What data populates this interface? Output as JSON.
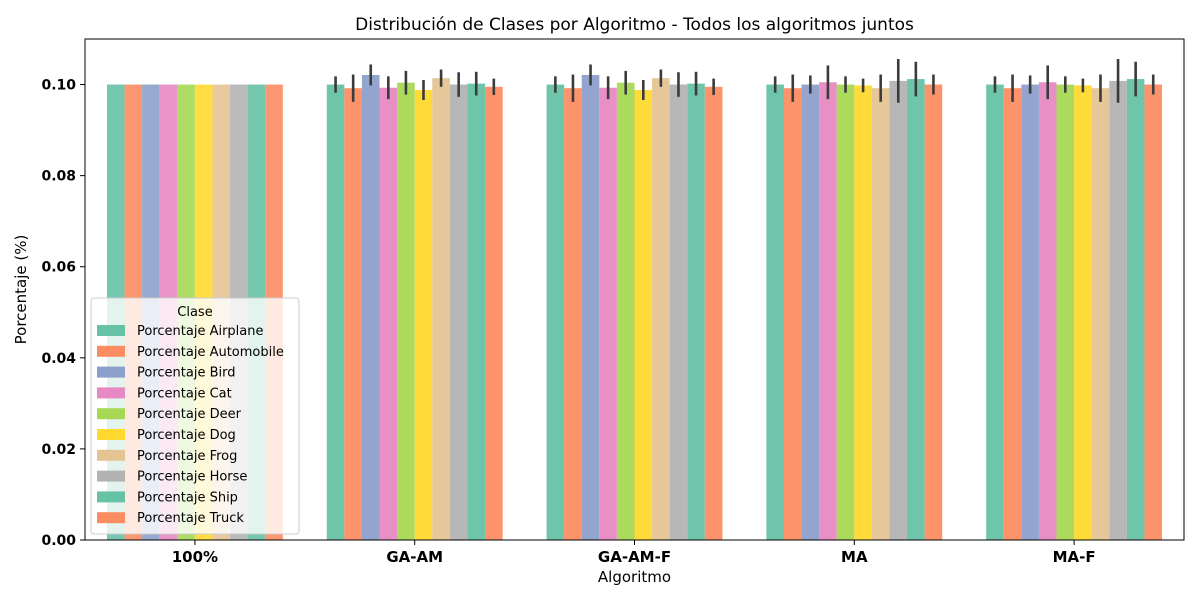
{
  "chart_data": {
    "type": "bar",
    "title": "Distribución de Clases por Algoritmo - Todos los algoritmos juntos",
    "xlabel": "Algoritmo",
    "ylabel": "Porcentaje (%)",
    "ylim": [
      0,
      0.11
    ],
    "yticks": [
      0.0,
      0.02,
      0.04,
      0.06,
      0.08,
      0.1
    ],
    "ytick_labels": [
      "0.00",
      "0.02",
      "0.04",
      "0.06",
      "0.08",
      "0.10"
    ],
    "categories": [
      "100%",
      "GA-AM",
      "GA-AM-F",
      "MA",
      "MA-F"
    ],
    "legend": {
      "title": "Clase",
      "placement": "lower-left"
    },
    "grid": false,
    "series": [
      {
        "name": "Porcentaje Airplane",
        "color": "#66c2a5",
        "values": [
          0.1,
          0.1,
          0.1,
          0.1,
          0.1
        ],
        "err": [
          0,
          0.0018,
          0.0018,
          0.0018,
          0.0018
        ]
      },
      {
        "name": "Porcentaje Automobile",
        "color": "#fc8d62",
        "values": [
          0.1,
          0.0992,
          0.0992,
          0.0992,
          0.0992
        ],
        "err": [
          0,
          0.003,
          0.003,
          0.003,
          0.003
        ]
      },
      {
        "name": "Porcentaje Bird",
        "color": "#8da0cb",
        "values": [
          0.1,
          0.1021,
          0.1021,
          0.1,
          0.1
        ],
        "err": [
          0,
          0.0023,
          0.0023,
          0.002,
          0.002
        ]
      },
      {
        "name": "Porcentaje Cat",
        "color": "#e78ac3",
        "values": [
          0.1,
          0.0993,
          0.0993,
          0.1005,
          0.1005
        ],
        "err": [
          0,
          0.0025,
          0.0025,
          0.0037,
          0.0037
        ]
      },
      {
        "name": "Porcentaje Deer",
        "color": "#a6d854",
        "values": [
          0.1,
          0.1004,
          0.1004,
          0.1,
          0.1
        ],
        "err": [
          0,
          0.0026,
          0.0026,
          0.0018,
          0.0018
        ]
      },
      {
        "name": "Porcentaje Dog",
        "color": "#ffd92f",
        "values": [
          0.1,
          0.0988,
          0.0988,
          0.0998,
          0.0998
        ],
        "err": [
          0,
          0.0022,
          0.0022,
          0.0015,
          0.0015
        ]
      },
      {
        "name": "Porcentaje Frog",
        "color": "#e5c494",
        "values": [
          0.1,
          0.1014,
          0.1014,
          0.0992,
          0.0992
        ],
        "err": [
          0,
          0.0019,
          0.0019,
          0.003,
          0.003
        ]
      },
      {
        "name": "Porcentaje Horse",
        "color": "#b3b3b3",
        "values": [
          0.1,
          0.1,
          0.1,
          0.1008,
          0.1008
        ],
        "err": [
          0,
          0.0027,
          0.0027,
          0.0048,
          0.0048
        ]
      },
      {
        "name": "Porcentaje Ship",
        "color": "#66c2a5",
        "values": [
          0.1,
          0.1002,
          0.1002,
          0.1012,
          0.1012
        ],
        "err": [
          0,
          0.0026,
          0.0026,
          0.0038,
          0.0038
        ]
      },
      {
        "name": "Porcentaje Truck",
        "color": "#fc8d62",
        "values": [
          0.1,
          0.0995,
          0.0995,
          0.1,
          0.1
        ],
        "err": [
          0,
          0.0018,
          0.0018,
          0.0022,
          0.0022
        ]
      }
    ]
  }
}
